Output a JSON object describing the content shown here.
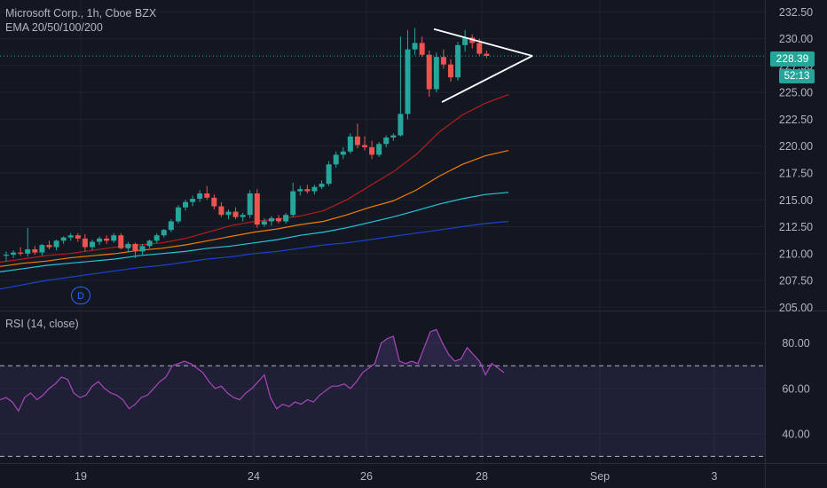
{
  "header": {
    "symbol_line": "Microsoft Corp., 1h, Cboe BZX",
    "ema_line": "EMA 20/50/100/200"
  },
  "rsi": {
    "label": "RSI (14, close)",
    "ticks": [
      "80.00",
      "60.00",
      "40.00"
    ],
    "tick_values": [
      80,
      60,
      40
    ],
    "upper_band": 70,
    "lower_band": 30,
    "ylim": [
      27,
      94
    ],
    "values": [
      55,
      56,
      54,
      50,
      56,
      58,
      55,
      57,
      60,
      62,
      65,
      64,
      58,
      56,
      57,
      61,
      63,
      60,
      58,
      57,
      55,
      51,
      53,
      56,
      57,
      60,
      63,
      65,
      70,
      71,
      72,
      71,
      69,
      67,
      63,
      60,
      61,
      58,
      56,
      55,
      58,
      60,
      63,
      66,
      56,
      51,
      53,
      52,
      54,
      53,
      55,
      54,
      57,
      59,
      61,
      61,
      62,
      60,
      63,
      67,
      69,
      71,
      80,
      82,
      83,
      72,
      71,
      72,
      71,
      78,
      85,
      86,
      80,
      75,
      72,
      73,
      78,
      75,
      72,
      66,
      71,
      69,
      67
    ]
  },
  "price_axis": {
    "ticks": [
      "232.50",
      "230.00",
      "227.50",
      "225.00",
      "222.50",
      "220.00",
      "217.50",
      "215.00",
      "212.50",
      "210.00",
      "207.50",
      "205.00"
    ],
    "tick_values": [
      232.5,
      230,
      227.5,
      225,
      222.5,
      220,
      217.5,
      215,
      212.5,
      210,
      207.5,
      205
    ]
  },
  "time_axis": {
    "ticks": [
      "19",
      "24",
      "26",
      "28",
      "Sep",
      "3"
    ]
  },
  "last_price": "228.39",
  "countdown": "52:13",
  "day_marker": "D",
  "colors": {
    "up": "#26a69a",
    "down": "#ef5350",
    "ema20": "#b71c1c",
    "ema50": "#f57c00",
    "ema100": "#26c6da",
    "ema200": "#1e40cf",
    "rsi_line": "#ab47bc"
  },
  "chart_data": {
    "type": "candlestick",
    "ylim": [
      204.7,
      233.6
    ],
    "candles": [
      [
        209.8,
        210.2,
        209.3,
        209.9
      ],
      [
        209.9,
        210.3,
        209.6,
        210.1
      ],
      [
        210.1,
        210.6,
        209.8,
        210.0
      ],
      [
        210.0,
        212.4,
        209.7,
        210.4
      ],
      [
        210.4,
        210.7,
        209.9,
        210.1
      ],
      [
        210.1,
        210.9,
        209.8,
        210.8
      ],
      [
        210.8,
        211.2,
        210.4,
        210.6
      ],
      [
        210.6,
        211.3,
        210.3,
        211.2
      ],
      [
        211.2,
        211.6,
        210.9,
        211.5
      ],
      [
        211.5,
        211.9,
        211.2,
        211.7
      ],
      [
        211.7,
        211.9,
        211.1,
        211.4
      ],
      [
        211.4,
        211.8,
        210.2,
        210.6
      ],
      [
        210.6,
        211.3,
        210.3,
        211.1
      ],
      [
        211.1,
        211.6,
        210.8,
        211.4
      ],
      [
        211.4,
        211.7,
        210.9,
        211.2
      ],
      [
        211.2,
        211.9,
        211.0,
        211.7
      ],
      [
        211.7,
        211.9,
        210.4,
        210.5
      ],
      [
        210.5,
        211.1,
        210.1,
        210.9
      ],
      [
        210.9,
        211.0,
        209.6,
        210.2
      ],
      [
        210.2,
        210.9,
        209.9,
        210.7
      ],
      [
        210.7,
        211.3,
        210.5,
        211.2
      ],
      [
        211.2,
        211.9,
        211.0,
        211.7
      ],
      [
        211.7,
        212.3,
        211.5,
        212.2
      ],
      [
        212.2,
        213.2,
        212.0,
        213.0
      ],
      [
        213.0,
        214.5,
        212.8,
        214.3
      ],
      [
        214.3,
        215.0,
        214.0,
        214.8
      ],
      [
        214.8,
        215.4,
        214.4,
        215.1
      ],
      [
        215.1,
        215.9,
        214.8,
        215.6
      ],
      [
        215.6,
        216.3,
        215.0,
        215.2
      ],
      [
        215.2,
        215.5,
        214.1,
        214.4
      ],
      [
        214.4,
        214.8,
        213.4,
        213.6
      ],
      [
        213.6,
        214.1,
        213.2,
        213.9
      ],
      [
        213.9,
        214.3,
        213.2,
        213.4
      ],
      [
        213.4,
        213.8,
        213.0,
        213.6
      ],
      [
        213.6,
        215.9,
        213.3,
        215.6
      ],
      [
        215.6,
        216.0,
        212.4,
        212.7
      ],
      [
        212.7,
        213.3,
        212.5,
        213.0
      ],
      [
        213.0,
        213.5,
        212.6,
        213.3
      ],
      [
        213.3,
        213.6,
        212.8,
        213.0
      ],
      [
        213.0,
        213.8,
        212.8,
        213.6
      ],
      [
        213.6,
        216.6,
        213.4,
        215.8
      ],
      [
        215.8,
        216.3,
        215.4,
        216.0
      ],
      [
        216.0,
        216.4,
        215.6,
        215.8
      ],
      [
        215.8,
        216.4,
        215.5,
        216.2
      ],
      [
        216.2,
        216.8,
        216.0,
        216.5
      ],
      [
        216.5,
        218.6,
        216.3,
        218.3
      ],
      [
        218.3,
        219.5,
        218.0,
        219.2
      ],
      [
        219.2,
        219.9,
        218.8,
        219.5
      ],
      [
        219.5,
        221.2,
        219.3,
        220.9
      ],
      [
        220.9,
        222.1,
        219.8,
        220.1
      ],
      [
        220.1,
        220.9,
        219.6,
        219.9
      ],
      [
        219.9,
        220.5,
        218.8,
        219.2
      ],
      [
        219.2,
        220.4,
        219.0,
        220.2
      ],
      [
        220.2,
        221.0,
        219.9,
        220.8
      ],
      [
        220.8,
        221.2,
        220.5,
        221.0
      ],
      [
        221.0,
        230.2,
        220.9,
        223.0
      ],
      [
        223.0,
        230.8,
        222.5,
        229.0
      ],
      [
        229.0,
        231.0,
        228.5,
        229.6
      ],
      [
        229.6,
        230.2,
        228.3,
        228.5
      ],
      [
        228.5,
        228.9,
        224.6,
        225.3
      ],
      [
        225.3,
        228.7,
        225.0,
        228.3
      ],
      [
        228.3,
        229.0,
        227.2,
        227.6
      ],
      [
        227.6,
        228.1,
        226.0,
        226.4
      ],
      [
        226.4,
        229.7,
        226.1,
        229.4
      ],
      [
        229.4,
        230.8,
        228.8,
        230.1
      ],
      [
        230.1,
        230.4,
        229.1,
        229.6
      ],
      [
        229.6,
        230.0,
        228.4,
        228.6
      ],
      [
        228.6,
        228.9,
        228.2,
        228.4
      ]
    ],
    "ema": [
      {
        "name": "EMA 20",
        "values": [
          209.2,
          209.5,
          209.8,
          210.0,
          210.3,
          210.6,
          210.8,
          211.0,
          211.4,
          212.0,
          212.6,
          213.0,
          213.2,
          213.5,
          214.0,
          215.0,
          216.3,
          217.6,
          219.2,
          221.3,
          222.9,
          224.0,
          224.8
        ]
      },
      {
        "name": "EMA 50",
        "values": [
          208.8,
          209.1,
          209.3,
          209.6,
          209.8,
          210.0,
          210.3,
          210.5,
          210.8,
          211.2,
          211.6,
          212.0,
          212.3,
          212.7,
          213.0,
          213.6,
          214.3,
          214.9,
          215.9,
          217.2,
          218.3,
          219.1,
          219.6
        ]
      },
      {
        "name": "EMA 100",
        "values": [
          208.3,
          208.6,
          208.9,
          209.1,
          209.3,
          209.5,
          209.8,
          210.0,
          210.2,
          210.5,
          210.7,
          211.0,
          211.3,
          211.7,
          212.0,
          212.4,
          212.9,
          213.4,
          214.0,
          214.6,
          215.1,
          215.5,
          215.7
        ]
      },
      {
        "name": "EMA 200",
        "values": [
          206.7,
          207.1,
          207.5,
          207.8,
          208.1,
          208.4,
          208.7,
          208.9,
          209.2,
          209.5,
          209.7,
          210.0,
          210.2,
          210.5,
          210.8,
          211.0,
          211.3,
          211.6,
          211.9,
          212.2,
          212.5,
          212.8,
          213.0
        ]
      }
    ],
    "pattern": {
      "upper": [
        [
          230.9
        ],
        [
          228.4
        ]
      ],
      "lower": [
        [
          224.1
        ],
        [
          228.4
        ]
      ]
    }
  }
}
